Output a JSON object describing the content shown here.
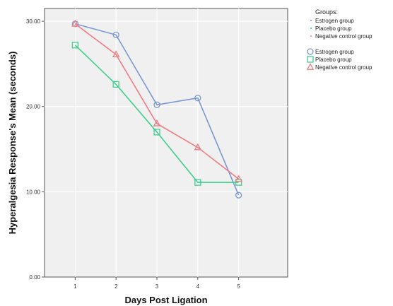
{
  "chart_data": {
    "type": "line",
    "title": "",
    "xlabel": "Days Post Ligation",
    "ylabel": "Hyperalgesia Response's Mean (seconds)",
    "x": [
      1,
      2,
      3,
      4,
      5
    ],
    "xticks": [
      "1",
      "2",
      "3",
      "4",
      "5"
    ],
    "yticks": [
      "0.00",
      "10.00",
      "20.00",
      "30.00"
    ],
    "ylim": [
      0,
      31.5
    ],
    "grid": true,
    "legend_position": "right",
    "legend_title": "Groups:",
    "legend_line_entries": [
      "Estrogen group",
      "Placebo group",
      "Negative control group"
    ],
    "series": [
      {
        "name": "Estrogen group",
        "color": "#7b98d1",
        "marker": "circle",
        "values": [
          29.7,
          28.4,
          20.2,
          21.0,
          9.6
        ]
      },
      {
        "name": "Placebo group",
        "color": "#3fcf8e",
        "marker": "square",
        "values": [
          27.2,
          22.6,
          17.0,
          11.1,
          11.1
        ]
      },
      {
        "name": "Negative control group",
        "color": "#f27b82",
        "marker": "triangle",
        "values": [
          29.7,
          26.1,
          18.0,
          15.2,
          11.5
        ]
      }
    ]
  }
}
